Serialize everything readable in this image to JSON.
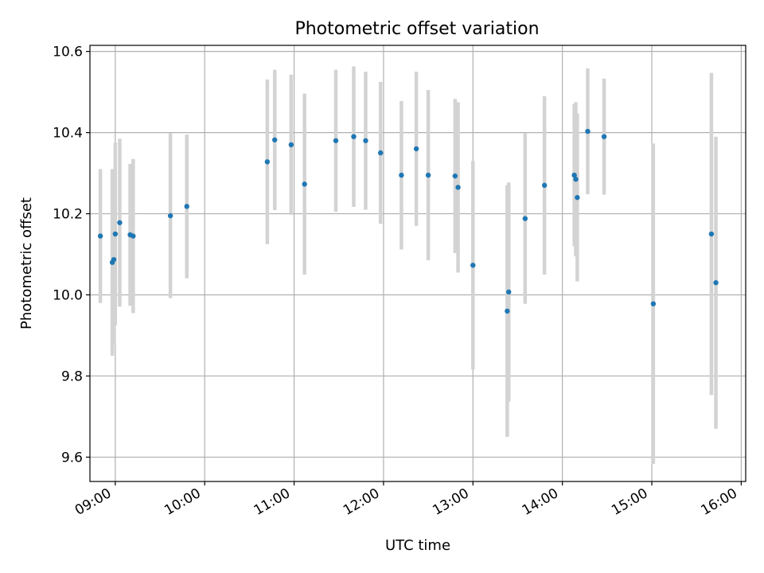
{
  "chart_data": {
    "type": "scatter",
    "title": "Photometric offset variation",
    "xlabel": "UTC time",
    "ylabel": "Photometric offset",
    "x_axis": {
      "kind": "time",
      "range": [
        "08:43",
        "16:03"
      ],
      "ticks": [
        "09:00",
        "10:00",
        "11:00",
        "12:00",
        "13:00",
        "14:00",
        "15:00",
        "16:00"
      ]
    },
    "y_axis": {
      "range": [
        9.54,
        10.615
      ],
      "ticks": [
        "9.6",
        "9.8",
        "10.0",
        "10.2",
        "10.4",
        "10.6"
      ]
    },
    "grid": true,
    "colors": {
      "point": "#1f77b4",
      "errorbar": "#d3d3d3",
      "grid": "#b0b0b0"
    },
    "points": [
      {
        "x": "08:50",
        "y": 10.145,
        "err": 0.165
      },
      {
        "x": "08:58",
        "y": 10.08,
        "err": 0.23
      },
      {
        "x": "08:59",
        "y": 10.087,
        "err": 0.21
      },
      {
        "x": "09:00",
        "y": 10.15,
        "err": 0.225
      },
      {
        "x": "09:03",
        "y": 10.178,
        "err": 0.207
      },
      {
        "x": "09:10",
        "y": 10.148,
        "err": 0.175
      },
      {
        "x": "09:12",
        "y": 10.145,
        "err": 0.19
      },
      {
        "x": "09:37",
        "y": 10.195,
        "err": 0.203
      },
      {
        "x": "09:48",
        "y": 10.218,
        "err": 0.177
      },
      {
        "x": "10:42",
        "y": 10.328,
        "err": 0.203
      },
      {
        "x": "10:47",
        "y": 10.382,
        "err": 0.173
      },
      {
        "x": "10:58",
        "y": 10.37,
        "err": 0.173
      },
      {
        "x": "11:07",
        "y": 10.273,
        "err": 0.223
      },
      {
        "x": "11:28",
        "y": 10.38,
        "err": 0.175
      },
      {
        "x": "11:40",
        "y": 10.39,
        "err": 0.173
      },
      {
        "x": "11:48",
        "y": 10.38,
        "err": 0.17
      },
      {
        "x": "11:58",
        "y": 10.35,
        "err": 0.175
      },
      {
        "x": "12:12",
        "y": 10.295,
        "err": 0.183
      },
      {
        "x": "12:22",
        "y": 10.36,
        "err": 0.19
      },
      {
        "x": "12:30",
        "y": 10.295,
        "err": 0.21
      },
      {
        "x": "12:48",
        "y": 10.293,
        "err": 0.19
      },
      {
        "x": "12:50",
        "y": 10.265,
        "err": 0.21
      },
      {
        "x": "13:00",
        "y": 10.073,
        "err": 0.257
      },
      {
        "x": "13:23",
        "y": 9.96,
        "err": 0.31
      },
      {
        "x": "13:24",
        "y": 10.007,
        "err": 0.27
      },
      {
        "x": "13:35",
        "y": 10.188,
        "err": 0.21
      },
      {
        "x": "13:48",
        "y": 10.27,
        "err": 0.22
      },
      {
        "x": "14:08",
        "y": 10.295,
        "err": 0.175
      },
      {
        "x": "14:09",
        "y": 10.285,
        "err": 0.19
      },
      {
        "x": "14:10",
        "y": 10.24,
        "err": 0.207
      },
      {
        "x": "14:17",
        "y": 10.403,
        "err": 0.155
      },
      {
        "x": "14:28",
        "y": 10.39,
        "err": 0.143
      },
      {
        "x": "15:01",
        "y": 9.978,
        "err": 0.395
      },
      {
        "x": "15:40",
        "y": 10.15,
        "err": 0.397
      },
      {
        "x": "15:43",
        "y": 10.03,
        "err": 0.36
      }
    ]
  }
}
